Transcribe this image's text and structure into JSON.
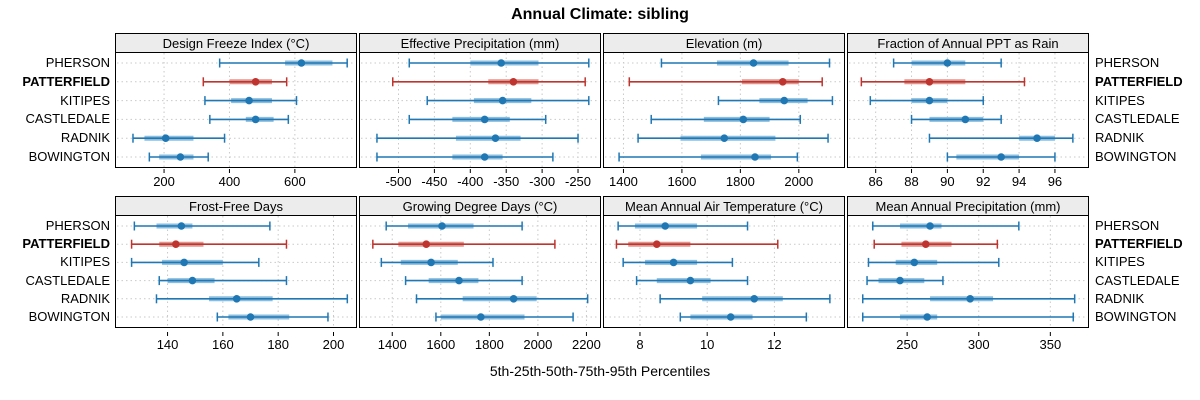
{
  "title": "Annual Climate: sibling",
  "caption": "5th-25th-50th-75th-95th Percentiles",
  "highlight_site": "PATTERFIELD",
  "colors": {
    "series_blue": "#1f77b4",
    "series_blue_band": "#8bbdde",
    "highlight_red": "#bf342e",
    "highlight_red_band": "#de968f",
    "grid": "#c9c9c9",
    "strip_bg": "#ececec",
    "panel_border": "#000000",
    "text": "#000000"
  },
  "chart_data": {
    "type": "scatter",
    "variant": "lattice-style percentile interval dotplot (dot = median, thick band = 25th-75th, thin line with caps = 5th-95th)",
    "percentiles": [
      5,
      25,
      50,
      75,
      95
    ],
    "rows": [
      "PHERSON",
      "PATTERFIELD",
      "KITIPES",
      "CASTLEDALE",
      "RADNIK",
      "BOWINGTON"
    ],
    "legend_position": "none",
    "grid": "dotted",
    "panels": [
      {
        "title": "Design Freeze Index (°C)",
        "grid_row": 1,
        "grid_col": 1,
        "ticks": [
          200,
          400,
          600
        ],
        "xlim": [
          50,
          790
        ],
        "values": {
          "PHERSON": [
            370,
            570,
            620,
            715,
            760
          ],
          "PATTERFIELD": [
            320,
            400,
            480,
            530,
            575
          ],
          "KITIPES": [
            325,
            405,
            460,
            530,
            605
          ],
          "CASTLEDALE": [
            340,
            450,
            480,
            535,
            580
          ],
          "RADNIK": [
            105,
            140,
            205,
            290,
            385
          ],
          "BOWINGTON": [
            155,
            185,
            250,
            290,
            335
          ]
        }
      },
      {
        "title": "Effective Precipitation (mm)",
        "grid_row": 1,
        "grid_col": 2,
        "ticks": [
          -500,
          -450,
          -400,
          -350,
          -300,
          -250
        ],
        "xlim": [
          -555,
          -218
        ],
        "values": {
          "PHERSON": [
            -485,
            -400,
            -357,
            -305,
            -235
          ],
          "PATTERFIELD": [
            -508,
            -375,
            -340,
            -305,
            -240
          ],
          "KITIPES": [
            -460,
            -395,
            -355,
            -315,
            -235
          ],
          "CASTLEDALE": [
            -485,
            -425,
            -380,
            -345,
            -295
          ],
          "RADNIK": [
            -530,
            -420,
            -365,
            -330,
            -250
          ],
          "BOWINGTON": [
            -530,
            -425,
            -380,
            -355,
            -285
          ]
        }
      },
      {
        "title": "Elevation (m)",
        "grid_row": 1,
        "grid_col": 3,
        "ticks": [
          1400,
          1600,
          1800,
          2000
        ],
        "xlim": [
          1330,
          2158
        ],
        "values": {
          "PHERSON": [
            1530,
            1720,
            1845,
            1965,
            2105
          ],
          "PATTERFIELD": [
            1420,
            1805,
            1945,
            2000,
            2080
          ],
          "KITIPES": [
            1725,
            1865,
            1950,
            2030,
            2115
          ],
          "CASTLEDALE": [
            1495,
            1675,
            1810,
            1900,
            2005
          ],
          "RADNIK": [
            1450,
            1595,
            1745,
            1920,
            2100
          ],
          "BOWINGTON": [
            1385,
            1665,
            1850,
            1905,
            1995
          ]
        }
      },
      {
        "title": "Fraction of Annual PPT as Rain",
        "grid_row": 1,
        "grid_col": 4,
        "ticks": [
          86,
          88,
          90,
          92,
          94,
          96
        ],
        "xlim": [
          84.4,
          97.9
        ],
        "values": {
          "PHERSON": [
            87,
            88,
            90,
            91,
            93
          ],
          "PATTERFIELD": [
            85.2,
            87.6,
            89,
            91,
            94.3
          ],
          "KITIPES": [
            85.7,
            88,
            89,
            90,
            92
          ],
          "CASTLEDALE": [
            88,
            89,
            91,
            92,
            93
          ],
          "RADNIK": [
            89,
            94,
            95,
            96,
            97
          ],
          "BOWINGTON": [
            90,
            90.5,
            93,
            94,
            96
          ]
        }
      },
      {
        "title": "Frost-Free Days",
        "grid_row": 2,
        "grid_col": 1,
        "ticks": [
          140,
          160,
          180,
          200
        ],
        "xlim": [
          121,
          208.5
        ],
        "values": {
          "PHERSON": [
            128,
            136,
            145,
            149,
            177
          ],
          "PATTERFIELD": [
            127,
            137,
            143,
            153,
            183
          ],
          "KITIPES": [
            127,
            138,
            146,
            160,
            173
          ],
          "CASTLEDALE": [
            137,
            140,
            149,
            157,
            183
          ],
          "RADNIK": [
            136,
            155,
            165,
            178,
            205
          ],
          "BOWINGTON": [
            158,
            162,
            170,
            184,
            198
          ]
        }
      },
      {
        "title": "Growing Degree Days (°C)",
        "grid_row": 2,
        "grid_col": 2,
        "ticks": [
          1400,
          1600,
          1800,
          2000,
          2200
        ],
        "xlim": [
          1263,
          2260
        ],
        "values": {
          "PHERSON": [
            1375,
            1465,
            1605,
            1735,
            1935
          ],
          "PATTERFIELD": [
            1320,
            1425,
            1540,
            1695,
            2070
          ],
          "KITIPES": [
            1355,
            1435,
            1560,
            1670,
            1815
          ],
          "CASTLEDALE": [
            1455,
            1550,
            1675,
            1755,
            1935
          ],
          "RADNIK": [
            1500,
            1690,
            1900,
            1995,
            2205
          ],
          "BOWINGTON": [
            1580,
            1600,
            1765,
            1945,
            2145
          ]
        }
      },
      {
        "title": "Mean Annual Air Temperature (°C)",
        "grid_row": 2,
        "grid_col": 3,
        "ticks": [
          8,
          10,
          12
        ],
        "xlim": [
          6.9,
          14.1
        ],
        "values": {
          "PHERSON": [
            7.35,
            7.85,
            8.75,
            9.7,
            11.2
          ],
          "PATTERFIELD": [
            7.3,
            7.65,
            8.5,
            9.5,
            12.1
          ],
          "KITIPES": [
            7.5,
            8.15,
            9.0,
            9.7,
            10.75
          ],
          "CASTLEDALE": [
            7.9,
            8.5,
            9.5,
            10.1,
            11.2
          ],
          "RADNIK": [
            8.6,
            9.85,
            11.4,
            12.25,
            13.65
          ],
          "BOWINGTON": [
            9.2,
            9.5,
            10.7,
            11.35,
            12.95
          ]
        }
      },
      {
        "title": "Mean Annual Precipitation (mm)",
        "grid_row": 2,
        "grid_col": 4,
        "ticks": [
          250,
          300,
          350
        ],
        "xlim": [
          208,
          377
        ],
        "values": {
          "PHERSON": [
            226,
            245,
            266,
            274,
            328
          ],
          "PATTERFIELD": [
            227,
            246,
            263,
            281,
            313
          ],
          "KITIPES": [
            223,
            242,
            255,
            271,
            314
          ],
          "CASTLEDALE": [
            222,
            230,
            245,
            262,
            275
          ],
          "RADNIK": [
            219,
            266,
            294,
            310,
            367
          ],
          "BOWINGTON": [
            219,
            245,
            264,
            271,
            366
          ]
        }
      }
    ]
  }
}
